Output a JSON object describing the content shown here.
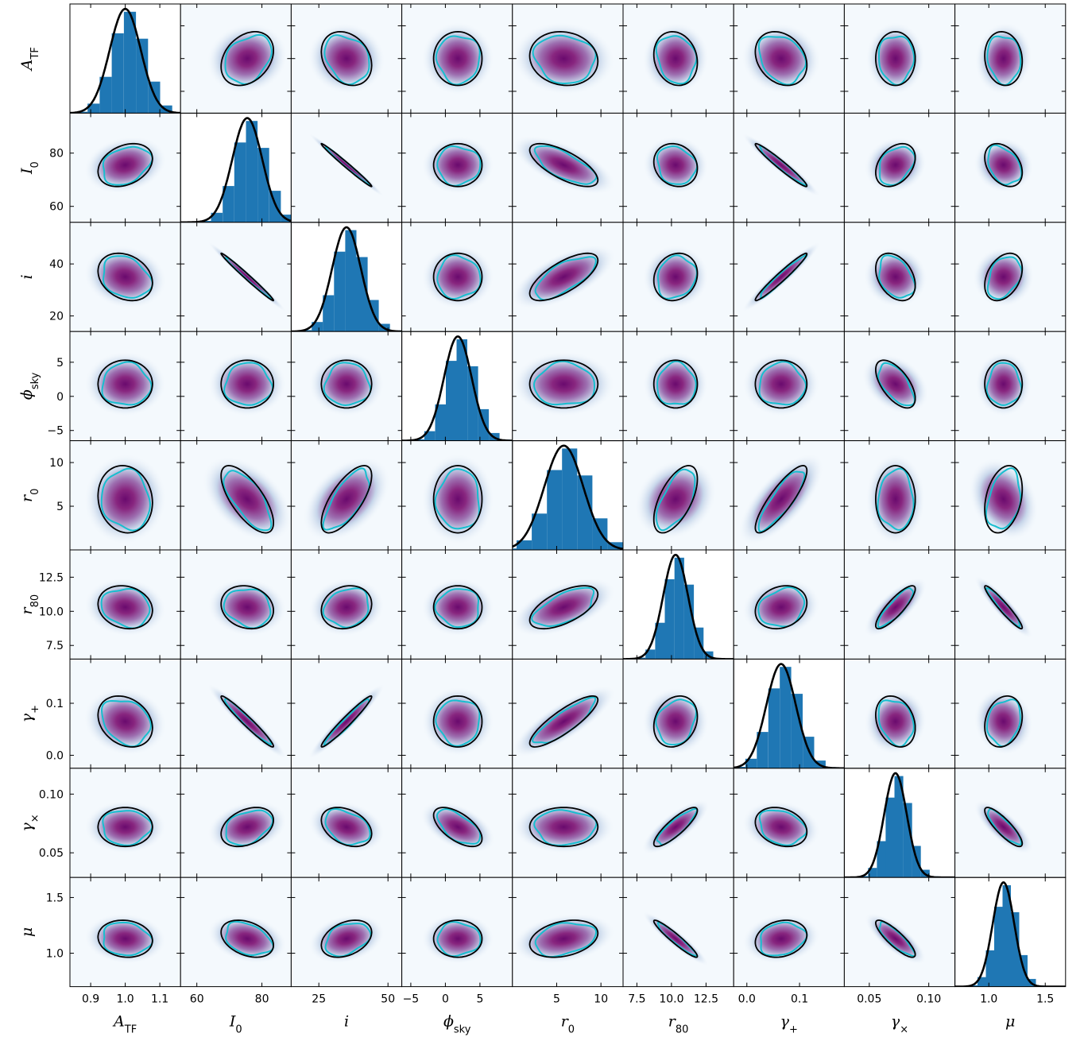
{
  "chart_data": {
    "type": "corner",
    "parameters": [
      {
        "key": "A_TF",
        "symbol": "A",
        "sub": "TF",
        "mean": 1.0,
        "sd": 0.045,
        "xlim": [
          0.84,
          1.16
        ],
        "ticks": [
          0.9,
          1.0,
          1.1
        ],
        "tick_labels": [
          "0.9",
          "1.0",
          "1.1"
        ]
      },
      {
        "key": "I_0",
        "symbol": "I",
        "sub": "0",
        "mean": 75.5,
        "sd": 4.6,
        "xlim": [
          55,
          89
        ],
        "ticks": [
          60,
          80
        ],
        "tick_labels": [
          "60",
          "80"
        ]
      },
      {
        "key": "i",
        "symbol": "i",
        "sub": "",
        "mean": 35.0,
        "sd": 5.2,
        "xlim": [
          15,
          55
        ],
        "ticks": [
          25,
          50
        ],
        "tick_labels": [
          "25",
          "50"
        ]
      },
      {
        "key": "phi_sky",
        "symbol": "ϕ",
        "sub": "sky",
        "mean": 1.8,
        "sd": 2.0,
        "xlim": [
          -6.3,
          9.7
        ],
        "ticks": [
          -5,
          0,
          5
        ],
        "tick_labels": [
          "−5",
          "0",
          "5"
        ]
      },
      {
        "key": "r_0",
        "symbol": "r",
        "sub": "0",
        "mean": 5.8,
        "sd": 2.2,
        "xlim": [
          0,
          12.5
        ],
        "ticks": [
          5,
          10
        ],
        "tick_labels": [
          "5",
          "10"
        ]
      },
      {
        "key": "r_80",
        "symbol": "r",
        "sub": "80",
        "mean": 10.3,
        "sd": 0.9,
        "xlim": [
          6.5,
          14.5
        ],
        "ticks": [
          7.5,
          10.0,
          12.5
        ],
        "tick_labels": [
          "7.5",
          "10.0",
          "12.5"
        ]
      },
      {
        "key": "gamma_plus",
        "symbol": "γ",
        "sub": "+",
        "mean": 0.065,
        "sd": 0.028,
        "xlim": [
          -0.025,
          0.185
        ],
        "ticks": [
          0.0,
          0.1
        ],
        "tick_labels": [
          "0.0",
          "0.1"
        ]
      },
      {
        "key": "gamma_cross",
        "symbol": "γ",
        "sub": "×",
        "mean": 0.072,
        "sd": 0.0095,
        "xlim": [
          0.029,
          0.122
        ],
        "ticks": [
          0.05,
          0.1
        ],
        "tick_labels": [
          "0.05",
          "0.10"
        ]
      },
      {
        "key": "mu",
        "symbol": "μ",
        "sub": "",
        "mean": 1.13,
        "sd": 0.095,
        "xlim": [
          0.7,
          1.68
        ],
        "ticks": [
          1.0,
          1.5
        ],
        "tick_labels": [
          "1.0",
          "1.5"
        ]
      }
    ],
    "correlations": [
      [
        1,
        0.3,
        -0.25,
        0,
        -0.1,
        -0.15,
        -0.25,
        0,
        -0.1
      ],
      [
        0.3,
        1,
        -0.99,
        0,
        -0.7,
        -0.15,
        -0.97,
        0.35,
        -0.35
      ],
      [
        -0.25,
        -0.99,
        1,
        0,
        0.7,
        0.15,
        0.97,
        -0.35,
        0.35
      ],
      [
        0,
        0,
        0,
        1,
        0,
        0,
        0,
        -0.6,
        0
      ],
      [
        -0.1,
        -0.7,
        0.7,
        0,
        1,
        0.6,
        0.85,
        0,
        0.3
      ],
      [
        -0.15,
        -0.15,
        0.15,
        0,
        0.6,
        1,
        0.2,
        0.85,
        -0.95
      ],
      [
        -0.25,
        -0.97,
        0.97,
        0,
        0.85,
        0.2,
        1,
        -0.25,
        0.2
      ],
      [
        0,
        0.35,
        -0.35,
        -0.6,
        0,
        0.85,
        -0.25,
        1,
        -0.85
      ],
      [
        -0.1,
        -0.35,
        0.35,
        0,
        0.3,
        -0.95,
        0.2,
        -0.85,
        1
      ]
    ],
    "row_ticks": {
      "I_0": {
        "ylim": [
          54,
          95
        ],
        "ticks": [
          60,
          80
        ],
        "tick_labels": [
          "60",
          "80"
        ]
      },
      "i": {
        "ylim": [
          14,
          56
        ],
        "ticks": [
          20,
          40
        ],
        "tick_labels": [
          "20",
          "40"
        ]
      },
      "phi_sky": {
        "ylim": [
          -6.5,
          9.5
        ],
        "ticks": [
          -5,
          0,
          5
        ],
        "tick_labels": [
          "−5",
          "0",
          "5"
        ]
      },
      "r_0": {
        "ylim": [
          0,
          12.5
        ],
        "ticks": [
          5,
          10
        ],
        "tick_labels": [
          "5",
          "10"
        ]
      },
      "r_80": {
        "ylim": [
          6.5,
          14.5
        ],
        "ticks": [
          7.5,
          10.0,
          12.5
        ],
        "tick_labels": [
          "7.5",
          "10.0",
          "12.5"
        ]
      },
      "gamma_plus": {
        "ylim": [
          -0.025,
          0.185
        ],
        "ticks": [
          0.0,
          0.1
        ],
        "tick_labels": [
          "0.0",
          "0.1"
        ]
      },
      "gamma_cross": {
        "ylim": [
          0.029,
          0.122
        ],
        "ticks": [
          0.05,
          0.1
        ],
        "tick_labels": [
          "0.05",
          "0.10"
        ]
      },
      "mu": {
        "ylim": [
          0.7,
          1.68
        ],
        "ticks": [
          1.0,
          1.5
        ],
        "tick_labels": [
          "1.0",
          "1.5"
        ]
      }
    },
    "grid": false,
    "legend": "none",
    "colors": {
      "histogram": "#1f77b4",
      "gaussian_curve": "#000000",
      "fisher_ellipse": "#000000",
      "posterior_contour": "#17becf",
      "density_low": "#f4f9fd",
      "density_high": "#5b005f"
    }
  }
}
